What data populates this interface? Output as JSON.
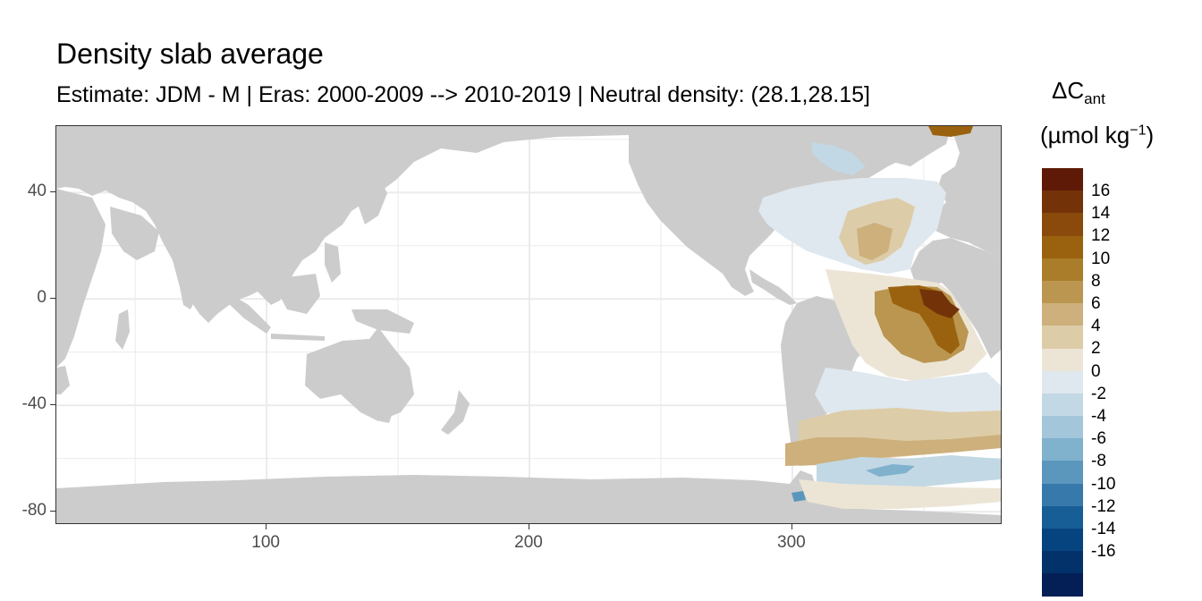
{
  "title": "Density slab average",
  "subtitle": "Estimate: JDM - M | Eras: 2000-2009 --> 2010-2019 | Neutral density: (28.1,28.15]",
  "map": {
    "x_range": [
      20,
      380
    ],
    "y_range": [
      -85,
      65
    ],
    "x_ticks": [
      {
        "value": 100,
        "label": "100"
      },
      {
        "value": 200,
        "label": "200"
      },
      {
        "value": 300,
        "label": "300"
      }
    ],
    "y_ticks": [
      {
        "value": 40,
        "label": "40"
      },
      {
        "value": 0,
        "label": "0"
      },
      {
        "value": -40,
        "label": "-40"
      },
      {
        "value": -80,
        "label": "-80"
      }
    ],
    "land_color": "#cccccc",
    "ocean_color": "#ffffff",
    "grid_color": "#ebebeb"
  },
  "legend": {
    "title_symbol": "ΔC",
    "title_subscript": "ant",
    "unit_prefix": "(µmol kg",
    "unit_superscript": "−1",
    "unit_suffix": ")",
    "labels": [
      "16",
      "14",
      "12",
      "10",
      "8",
      "6",
      "4",
      "2",
      "0",
      "-2",
      "-4",
      "-6",
      "-8",
      "-10",
      "-12",
      "-14",
      "-16"
    ],
    "colors": [
      "#5e1a06",
      "#743209",
      "#8a4a0b",
      "#9a620f",
      "#aa7d2a",
      "#bb9650",
      "#cdb07c",
      "#ddcca8",
      "#ece5d6",
      "#dfe8ee",
      "#c2d8e4",
      "#a3c6da",
      "#80b1cd",
      "#5b97bd",
      "#3679aa",
      "#175e97",
      "#064480",
      "#033169",
      "#031f55"
    ]
  }
}
